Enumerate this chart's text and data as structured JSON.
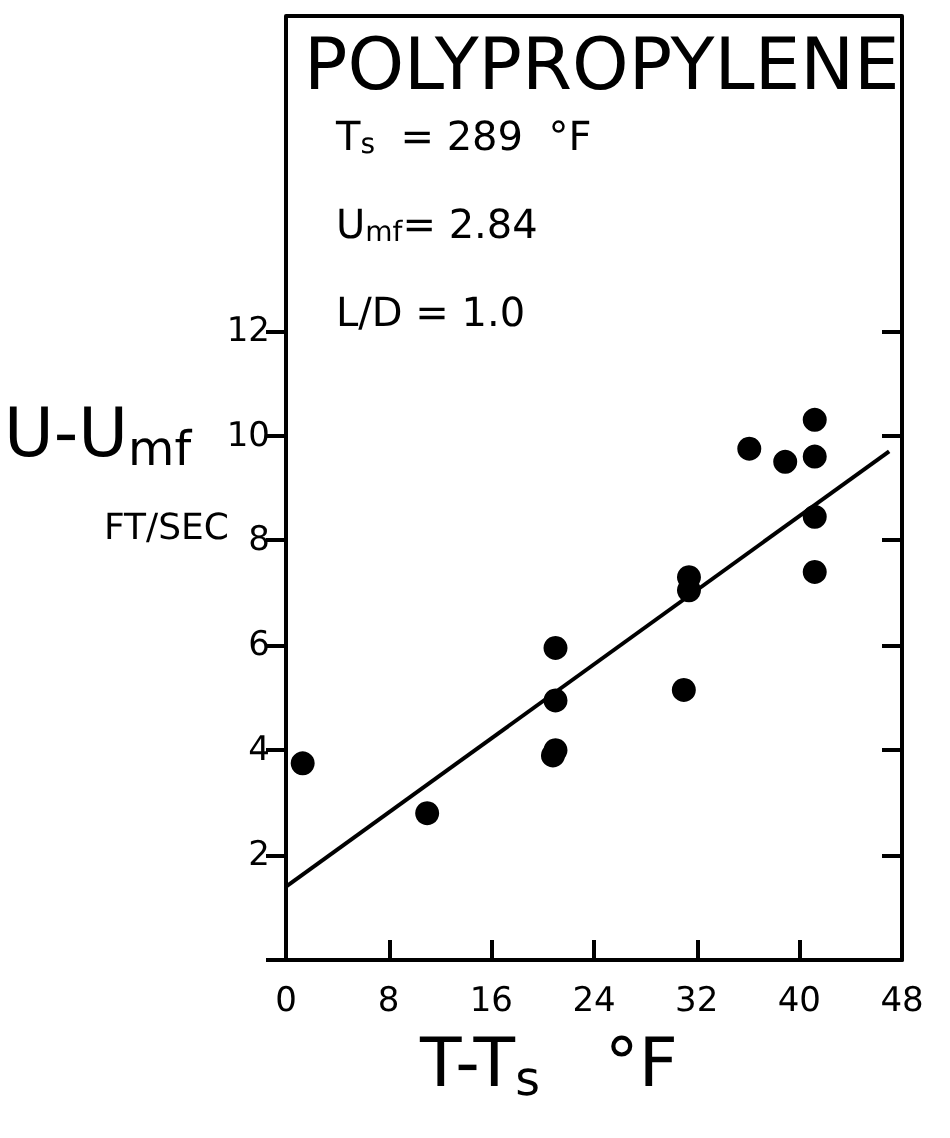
{
  "chart_data": {
    "type": "scatter",
    "title": "POLYPROPYLENE",
    "xlabel": "T-T$_{s}$   °F",
    "ylabel": "U-U$_{mf}$",
    "y2label": "FT/SEC",
    "annotations": [
      "T$_{s}$  = 289  °F",
      "U$_{mf}$= 2.84",
      "L/D = 1.0"
    ],
    "xlim": [
      0,
      48
    ],
    "xticks": [
      0,
      8,
      16,
      24,
      32,
      40,
      48
    ],
    "ylim": [
      0,
      18
    ],
    "yticks": [
      {
        "value": 0,
        "label": null
      },
      2,
      4,
      6,
      8,
      10,
      12
    ],
    "grid": false,
    "marker": "circle",
    "series": [
      {
        "color": "#000000",
        "x": [
          1.3,
          11.0,
          21.0,
          21.0,
          21.0,
          20.8,
          31.0,
          31.4,
          31.4,
          36.1,
          38.9,
          41.2,
          41.2,
          41.2,
          41.2
        ],
        "values": [
          3.75,
          2.8,
          5.95,
          4.95,
          4.0,
          3.9,
          5.15,
          7.3,
          7.05,
          9.75,
          9.5,
          10.3,
          9.6,
          8.45,
          7.4
        ]
      },
      {
        "type": "line",
        "color": "#000000",
        "marker": "none",
        "line_style": "solid",
        "x": [
          0,
          47
        ],
        "values": [
          1.4,
          9.7
        ]
      }
    ]
  }
}
